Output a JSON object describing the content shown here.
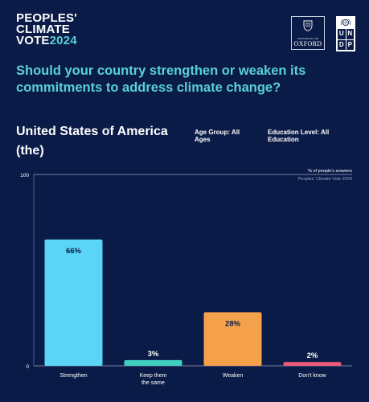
{
  "brand": {
    "line1": "PEOPLES'",
    "line2": "CLIMATE",
    "line3_word": "VOTE",
    "line3_year": "2024"
  },
  "logos": {
    "oxford_sub": "UNIVERSITY OF",
    "oxford_main": "OXFORD",
    "undp_letters": [
      "U",
      "N",
      "D",
      "P"
    ]
  },
  "question": "Should your country strengthen or weaken its commitments to address climate change?",
  "country": "United States of America (the)",
  "filters": {
    "age": "Age Group: All Ages",
    "education": "Education Level: All Education"
  },
  "colors": {
    "background": "#0b1b47",
    "accent": "#59d1d4"
  },
  "chart_data": {
    "type": "bar",
    "categories": [
      "Strengthen",
      "Keep them the same",
      "Weaken",
      "Don't know"
    ],
    "category_lines": [
      [
        "Strengthen"
      ],
      [
        "Keep them",
        "the same"
      ],
      [
        "Weaken"
      ],
      [
        "Don't know"
      ]
    ],
    "values": [
      66,
      3,
      28,
      2
    ],
    "value_labels": [
      "66%",
      "3%",
      "28%",
      "2%"
    ],
    "colors": [
      "#5ad5f7",
      "#3ed0bd",
      "#f5a04a",
      "#ef5a78"
    ],
    "ylim": [
      0,
      100
    ],
    "y_ticks": [
      0,
      100
    ],
    "note": "% of people's answers",
    "source": "Peoples' Climate Vote 2024"
  }
}
